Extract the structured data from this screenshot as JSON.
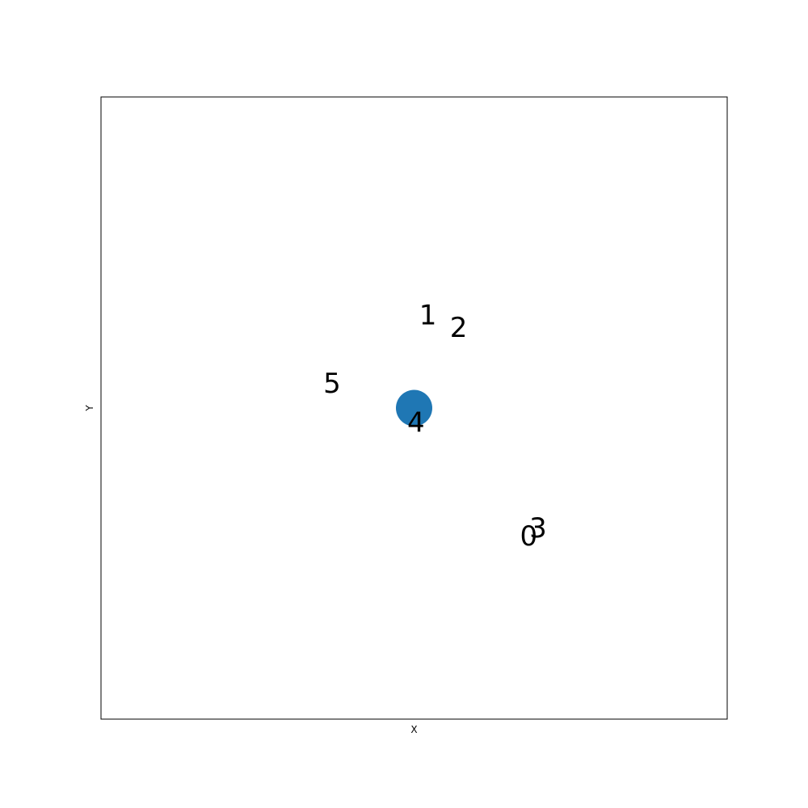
{
  "chart_data": {
    "type": "scatter",
    "title": "",
    "xlabel": "X",
    "ylabel": "Y",
    "xlim": [
      0,
      100
    ],
    "ylim": [
      0,
      100
    ],
    "grid": false,
    "show_ticks": false,
    "marker_color": "#1f77b4",
    "markers": [
      {
        "x": 50.0,
        "y": 50.0
      }
    ],
    "annotations": [
      {
        "text": "0",
        "x": 68.3,
        "y": 29.5
      },
      {
        "text": "1",
        "x": 52.2,
        "y": 65.0
      },
      {
        "text": "2",
        "x": 57.1,
        "y": 63.0
      },
      {
        "text": "3",
        "x": 69.8,
        "y": 30.8
      },
      {
        "text": "4",
        "x": 50.3,
        "y": 47.7
      },
      {
        "text": "5",
        "x": 36.9,
        "y": 54.0
      }
    ]
  }
}
